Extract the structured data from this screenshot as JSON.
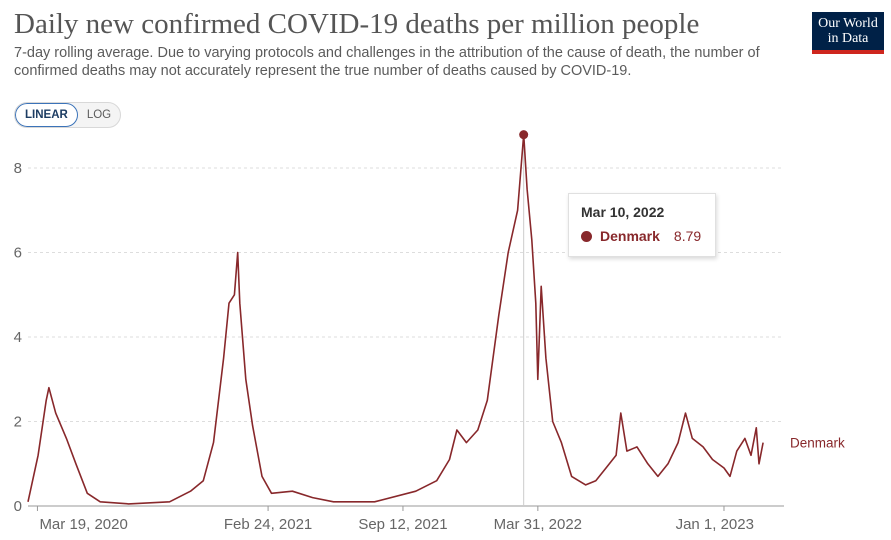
{
  "header": {
    "title": "Daily new confirmed COVID-19 deaths per million people",
    "subtitle": "7-day rolling average. Due to varying protocols and challenges in the attribution of the cause of death, the number of confirmed deaths may not accurately represent the true number of deaths caused by COVID-19.",
    "logo": "Our World in Data"
  },
  "scale_toggle": {
    "linear_label": "LINEAR",
    "log_label": "LOG",
    "selected": "LINEAR"
  },
  "colors": {
    "series": "#88282b",
    "grid": "#dddddd",
    "axis_text": "#666666"
  },
  "tooltip": {
    "date": "Mar 10, 2022",
    "entity": "Denmark",
    "value": "8.79"
  },
  "chart_data": {
    "type": "line",
    "title": "Daily new confirmed COVID-19 deaths per million people",
    "xlabel": "",
    "ylabel": "",
    "x_range": [
      "2020-03-05",
      "2023-03-31"
    ],
    "ylim": [
      0,
      8.9
    ],
    "y_ticks": [
      0,
      2,
      4,
      6,
      8
    ],
    "x_tick_labels": [
      "Mar 19, 2020",
      "Feb 24, 2021",
      "Sep 12, 2021",
      "Mar 31, 2022",
      "Jan 1, 2023"
    ],
    "x_ticks": [
      "2020-03-19",
      "2021-02-24",
      "2021-09-12",
      "2022-03-31",
      "2023-01-01"
    ],
    "grid": "horizontal dashed",
    "series": [
      {
        "name": "Denmark",
        "points": [
          [
            "2020-03-05",
            0.1
          ],
          [
            "2020-03-20",
            1.2
          ],
          [
            "2020-04-01",
            2.5
          ],
          [
            "2020-04-05",
            2.8
          ],
          [
            "2020-04-15",
            2.2
          ],
          [
            "2020-05-01",
            1.6
          ],
          [
            "2020-05-15",
            1.0
          ],
          [
            "2020-06-01",
            0.3
          ],
          [
            "2020-06-20",
            0.1
          ],
          [
            "2020-08-01",
            0.05
          ],
          [
            "2020-10-01",
            0.1
          ],
          [
            "2020-11-01",
            0.35
          ],
          [
            "2020-11-20",
            0.6
          ],
          [
            "2020-12-05",
            1.5
          ],
          [
            "2020-12-20",
            3.5
          ],
          [
            "2020-12-28",
            4.8
          ],
          [
            "2021-01-05",
            5.0
          ],
          [
            "2021-01-10",
            6.0
          ],
          [
            "2021-01-13",
            4.8
          ],
          [
            "2021-01-22",
            3.0
          ],
          [
            "2021-02-01",
            1.9
          ],
          [
            "2021-02-15",
            0.7
          ],
          [
            "2021-03-01",
            0.3
          ],
          [
            "2021-04-01",
            0.35
          ],
          [
            "2021-05-01",
            0.2
          ],
          [
            "2021-06-01",
            0.1
          ],
          [
            "2021-08-01",
            0.1
          ],
          [
            "2021-10-01",
            0.35
          ],
          [
            "2021-11-01",
            0.6
          ],
          [
            "2021-11-20",
            1.1
          ],
          [
            "2021-12-01",
            1.8
          ],
          [
            "2021-12-15",
            1.5
          ],
          [
            "2022-01-01",
            1.8
          ],
          [
            "2022-01-15",
            2.5
          ],
          [
            "2022-02-01",
            4.5
          ],
          [
            "2022-02-15",
            6.0
          ],
          [
            "2022-03-01",
            7.0
          ],
          [
            "2022-03-10",
            8.79
          ],
          [
            "2022-03-15",
            7.5
          ],
          [
            "2022-03-22",
            6.3
          ],
          [
            "2022-03-28",
            4.8
          ],
          [
            "2022-03-31",
            3.0
          ],
          [
            "2022-04-05",
            5.2
          ],
          [
            "2022-04-12",
            3.5
          ],
          [
            "2022-04-22",
            2.0
          ],
          [
            "2022-05-05",
            1.5
          ],
          [
            "2022-05-20",
            0.7
          ],
          [
            "2022-06-10",
            0.5
          ],
          [
            "2022-06-25",
            0.6
          ],
          [
            "2022-07-10",
            0.9
          ],
          [
            "2022-07-25",
            1.2
          ],
          [
            "2022-08-01",
            2.2
          ],
          [
            "2022-08-10",
            1.3
          ],
          [
            "2022-08-25",
            1.4
          ],
          [
            "2022-09-10",
            1.0
          ],
          [
            "2022-09-25",
            0.7
          ],
          [
            "2022-10-10",
            1.0
          ],
          [
            "2022-10-25",
            1.5
          ],
          [
            "2022-11-05",
            2.2
          ],
          [
            "2022-11-15",
            1.6
          ],
          [
            "2022-12-01",
            1.4
          ],
          [
            "2022-12-15",
            1.1
          ],
          [
            "2023-01-01",
            0.9
          ],
          [
            "2023-01-10",
            0.7
          ],
          [
            "2023-01-20",
            1.3
          ],
          [
            "2023-02-01",
            1.6
          ],
          [
            "2023-02-10",
            1.2
          ],
          [
            "2023-02-18",
            1.85
          ],
          [
            "2023-02-22",
            1.0
          ],
          [
            "2023-02-28",
            1.5
          ]
        ]
      }
    ],
    "highlight": {
      "date": "2022-03-10",
      "value": 8.79
    }
  }
}
